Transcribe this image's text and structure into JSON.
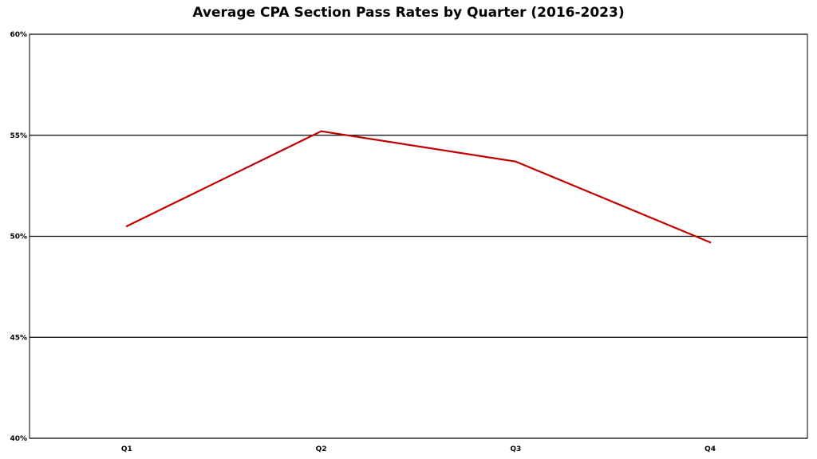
{
  "chart_data": {
    "type": "line",
    "title": "Average CPA Section Pass Rates by Quarter (2016-2023)",
    "xlabel": "",
    "ylabel": "",
    "categories": [
      "Q1",
      "Q2",
      "Q3",
      "Q4"
    ],
    "series": [
      {
        "values": [
          50.5,
          55.2,
          53.7,
          49.7
        ],
        "color": "#c00000"
      }
    ],
    "ylim": [
      40,
      60
    ],
    "yticks": [
      40,
      45,
      50,
      55,
      60
    ],
    "ytick_labels": [
      "40%",
      "45%",
      "50%",
      "55%",
      "60%"
    ],
    "grid": true,
    "legend": "none"
  }
}
